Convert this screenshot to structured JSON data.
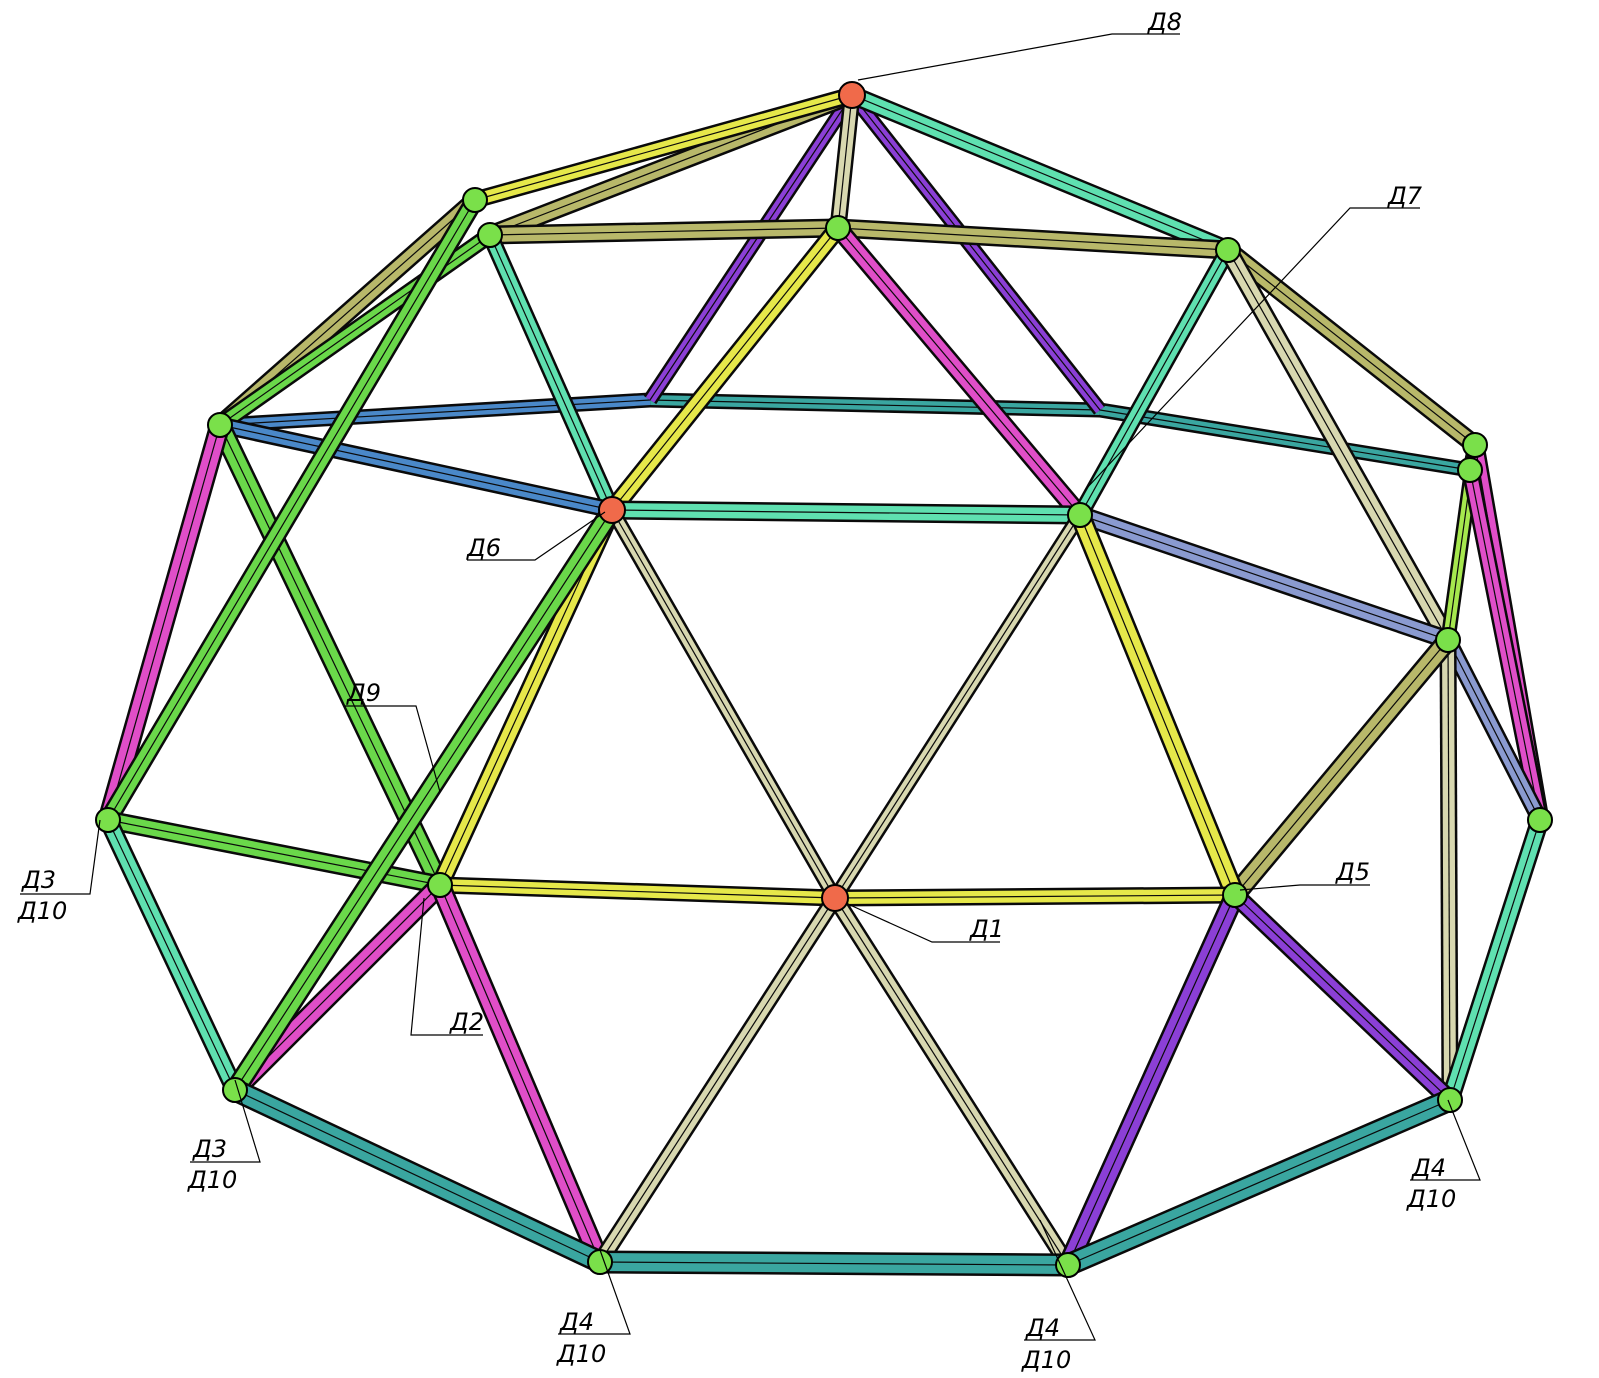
{
  "drawing": {
    "labels": {
      "d1": "Д1",
      "d2": "Д2",
      "d3_top": "Д3",
      "d10_left": "Д10",
      "d3_bottom": "Д3",
      "d10_bottom_left": "Д10",
      "d4_a": "Д4",
      "d10_a": "Д10",
      "d4_b": "Д4",
      "d10_b": "Д10",
      "d4_right": "Д4",
      "d10_right": "Д10",
      "d5": "Д5",
      "d6": "Д6",
      "d7": "Д7",
      "d8": "Д8",
      "d9": "Д9"
    }
  },
  "colors": {
    "magenta": "#e04ec8",
    "violet": "#8b3fd6",
    "teal": "#3aa6a0",
    "aqua": "#5fe0b0",
    "green": "#6ad84a",
    "lime": "#a6e84e",
    "yellow": "#e6e84a",
    "khaki": "#b8b86a",
    "cream": "#d8d8b0",
    "blue": "#4a88c8",
    "lavender": "#8a9ad0",
    "hub": "#7ae04a",
    "hub_center": "#f06a4a"
  }
}
